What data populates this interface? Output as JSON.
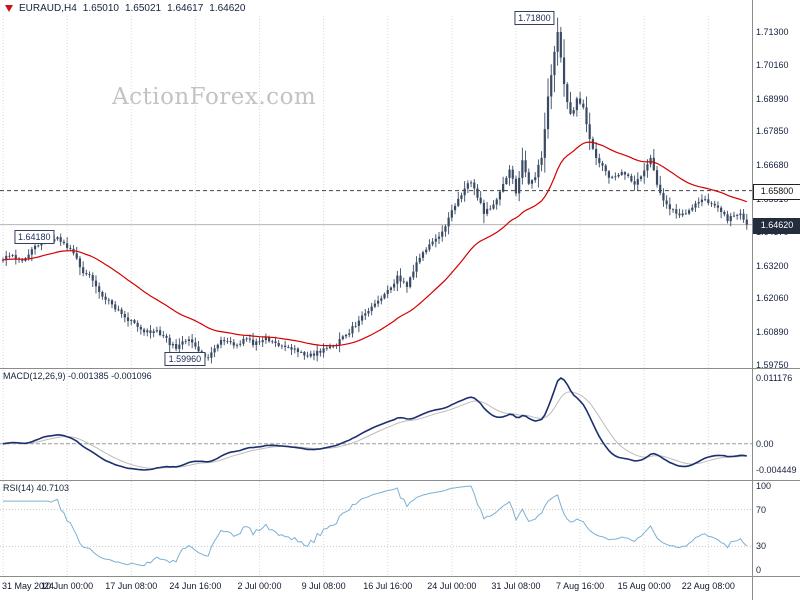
{
  "header": {
    "symbol_period": "EURAUD,H4",
    "open": "1.65010",
    "high": "1.65021",
    "low": "1.64617",
    "close": "1.64620"
  },
  "watermark": "ActionForex.com",
  "colors": {
    "candle": "#3a4a63",
    "ma": "#d40000",
    "macd": "#1c2f6e",
    "signal": "#bdbdbd",
    "rsi": "#7cb0d2",
    "grid": "#d9d9d9",
    "separator": "#8c8c8c",
    "level_dashed": "#444444",
    "level_current": "#b5b5b5",
    "watermark": "#c3c3c3"
  },
  "chart_data": {
    "type": "candlestick",
    "title": "EURAUD,H4",
    "x_labels": [
      "31 May 2024",
      "10 Jun 00:00",
      "17 Jun 08:00",
      "24 Jun 16:00",
      "2 Jul 00:00",
      "9 Jul 08:00",
      "16 Jul 16:00",
      "24 Jul 00:00",
      "31 Jul 08:00",
      "7 Aug 16:00",
      "15 Aug 00:00",
      "22 Aug 08:00"
    ],
    "bars_per_label": 20,
    "total_bars": 233,
    "price_panel": {
      "ylim": [
        1.5975,
        1.713
      ],
      "y_ticks": [
        "1.71300",
        "1.70160",
        "1.68990",
        "1.67850",
        "1.66680",
        "1.65510",
        "1.64370",
        "1.63200",
        "1.62060",
        "1.60890",
        "1.59750"
      ],
      "levels": [
        {
          "price": 1.658,
          "label": "1.65800",
          "style": "dashed"
        },
        {
          "price": 1.6462,
          "label": "1.64620",
          "style": "current"
        }
      ],
      "annotations": [
        {
          "text": "1.71800",
          "bar": 173,
          "price": 1.718
        },
        {
          "text": "1.64180",
          "bar": 17,
          "price": 1.6418
        },
        {
          "text": "1.59960",
          "bar": 64,
          "price": 1.5996
        }
      ],
      "close_keyframes": [
        [
          0,
          1.634
        ],
        [
          2,
          1.6358
        ],
        [
          4,
          1.6348
        ],
        [
          6,
          1.633
        ],
        [
          8,
          1.6365
        ],
        [
          10,
          1.6385
        ],
        [
          12,
          1.6402
        ],
        [
          15,
          1.6405
        ],
        [
          17,
          1.6418
        ],
        [
          19,
          1.6398
        ],
        [
          21,
          1.6375
        ],
        [
          23,
          1.634
        ],
        [
          25,
          1.63
        ],
        [
          27,
          1.6285
        ],
        [
          29,
          1.6255
        ],
        [
          31,
          1.6215
        ],
        [
          33,
          1.62
        ],
        [
          35,
          1.6175
        ],
        [
          37,
          1.6155
        ],
        [
          40,
          1.6125
        ],
        [
          42,
          1.611
        ],
        [
          44,
          1.6095
        ],
        [
          46,
          1.6085
        ],
        [
          48,
          1.6092
        ],
        [
          50,
          1.608
        ],
        [
          52,
          1.605
        ],
        [
          54,
          1.6035
        ],
        [
          56,
          1.6052
        ],
        [
          58,
          1.606
        ],
        [
          60,
          1.604
        ],
        [
          62,
          1.6015
        ],
        [
          64,
          1.6
        ],
        [
          66,
          1.6032
        ],
        [
          68,
          1.6068
        ],
        [
          70,
          1.6055
        ],
        [
          72,
          1.604
        ],
        [
          74,
          1.6056
        ],
        [
          76,
          1.6062
        ],
        [
          78,
          1.605
        ],
        [
          80,
          1.6056
        ],
        [
          82,
          1.6064
        ],
        [
          84,
          1.6058
        ],
        [
          86,
          1.6048
        ],
        [
          88,
          1.604
        ],
        [
          90,
          1.603
        ],
        [
          92,
          1.602
        ],
        [
          94,
          1.6012
        ],
        [
          96,
          1.6008
        ],
        [
          98,
          1.602
        ],
        [
          100,
          1.603
        ],
        [
          102,
          1.6042
        ],
        [
          104,
          1.6052
        ],
        [
          106,
          1.607
        ],
        [
          108,
          1.609
        ],
        [
          110,
          1.6115
        ],
        [
          112,
          1.6145
        ],
        [
          114,
          1.6165
        ],
        [
          116,
          1.619
        ],
        [
          118,
          1.6212
        ],
        [
          120,
          1.6232
        ],
        [
          122,
          1.6262
        ],
        [
          123,
          1.628
        ],
        [
          125,
          1.6258
        ],
        [
          126,
          1.6248
        ],
        [
          128,
          1.63
        ],
        [
          130,
          1.635
        ],
        [
          132,
          1.6376
        ],
        [
          134,
          1.64
        ],
        [
          136,
          1.6422
        ],
        [
          138,
          1.646
        ],
        [
          140,
          1.651
        ],
        [
          142,
          1.6552
        ],
        [
          144,
          1.6585
        ],
        [
          146,
          1.6615
        ],
        [
          148,
          1.656
        ],
        [
          150,
          1.65
        ],
        [
          152,
          1.6522
        ],
        [
          154,
          1.6555
        ],
        [
          156,
          1.66
        ],
        [
          158,
          1.666
        ],
        [
          160,
          1.657
        ],
        [
          162,
          1.669
        ],
        [
          164,
          1.66
        ],
        [
          166,
          1.6632
        ],
        [
          168,
          1.67
        ],
        [
          170,
          1.69
        ],
        [
          171,
          1.698
        ],
        [
          172,
          1.706
        ],
        [
          173,
          1.713
        ],
        [
          174,
          1.704
        ],
        [
          175,
          1.695
        ],
        [
          176,
          1.689
        ],
        [
          177,
          1.684
        ],
        [
          179,
          1.6892
        ],
        [
          181,
          1.6862
        ],
        [
          183,
          1.676
        ],
        [
          185,
          1.67
        ],
        [
          187,
          1.6665
        ],
        [
          189,
          1.663
        ],
        [
          191,
          1.6622
        ],
        [
          193,
          1.6638
        ],
        [
          195,
          1.663
        ],
        [
          197,
          1.66
        ],
        [
          199,
          1.6632
        ],
        [
          201,
          1.6672
        ],
        [
          202,
          1.669
        ],
        [
          204,
          1.66
        ],
        [
          206,
          1.6545
        ],
        [
          208,
          1.652
        ],
        [
          210,
          1.65
        ],
        [
          211,
          1.649
        ],
        [
          213,
          1.6502
        ],
        [
          215,
          1.6518
        ],
        [
          217,
          1.6538
        ],
        [
          219,
          1.6548
        ],
        [
          220,
          1.654
        ],
        [
          222,
          1.653
        ],
        [
          224,
          1.6512
        ],
        [
          226,
          1.648
        ],
        [
          228,
          1.6492
        ],
        [
          230,
          1.65
        ],
        [
          231,
          1.6482
        ],
        [
          232,
          1.6462
        ]
      ]
    },
    "macd_panel": {
      "label": "MACD(12,26,9)",
      "macd_value": "-0.001385",
      "signal_value": "-0.001096",
      "params": [
        12,
        26,
        9
      ],
      "ylim": [
        -0.004449,
        0.011176
      ],
      "y_ticks": [
        {
          "label": "0.011176",
          "value": 0.011176
        },
        {
          "label": "0.00",
          "value": 0
        },
        {
          "label": "-0.004449",
          "value": -0.004449
        }
      ]
    },
    "rsi_panel": {
      "label": "RSI(14)",
      "value": "40.7103",
      "period": 14,
      "ylim": [
        0,
        100
      ],
      "y_ticks": [
        {
          "label": "100",
          "value": 100
        },
        {
          "label": "70",
          "value": 70
        },
        {
          "label": "30",
          "value": 30
        },
        {
          "label": "0",
          "value": 0
        }
      ],
      "level_lines": [
        70,
        30
      ]
    }
  }
}
